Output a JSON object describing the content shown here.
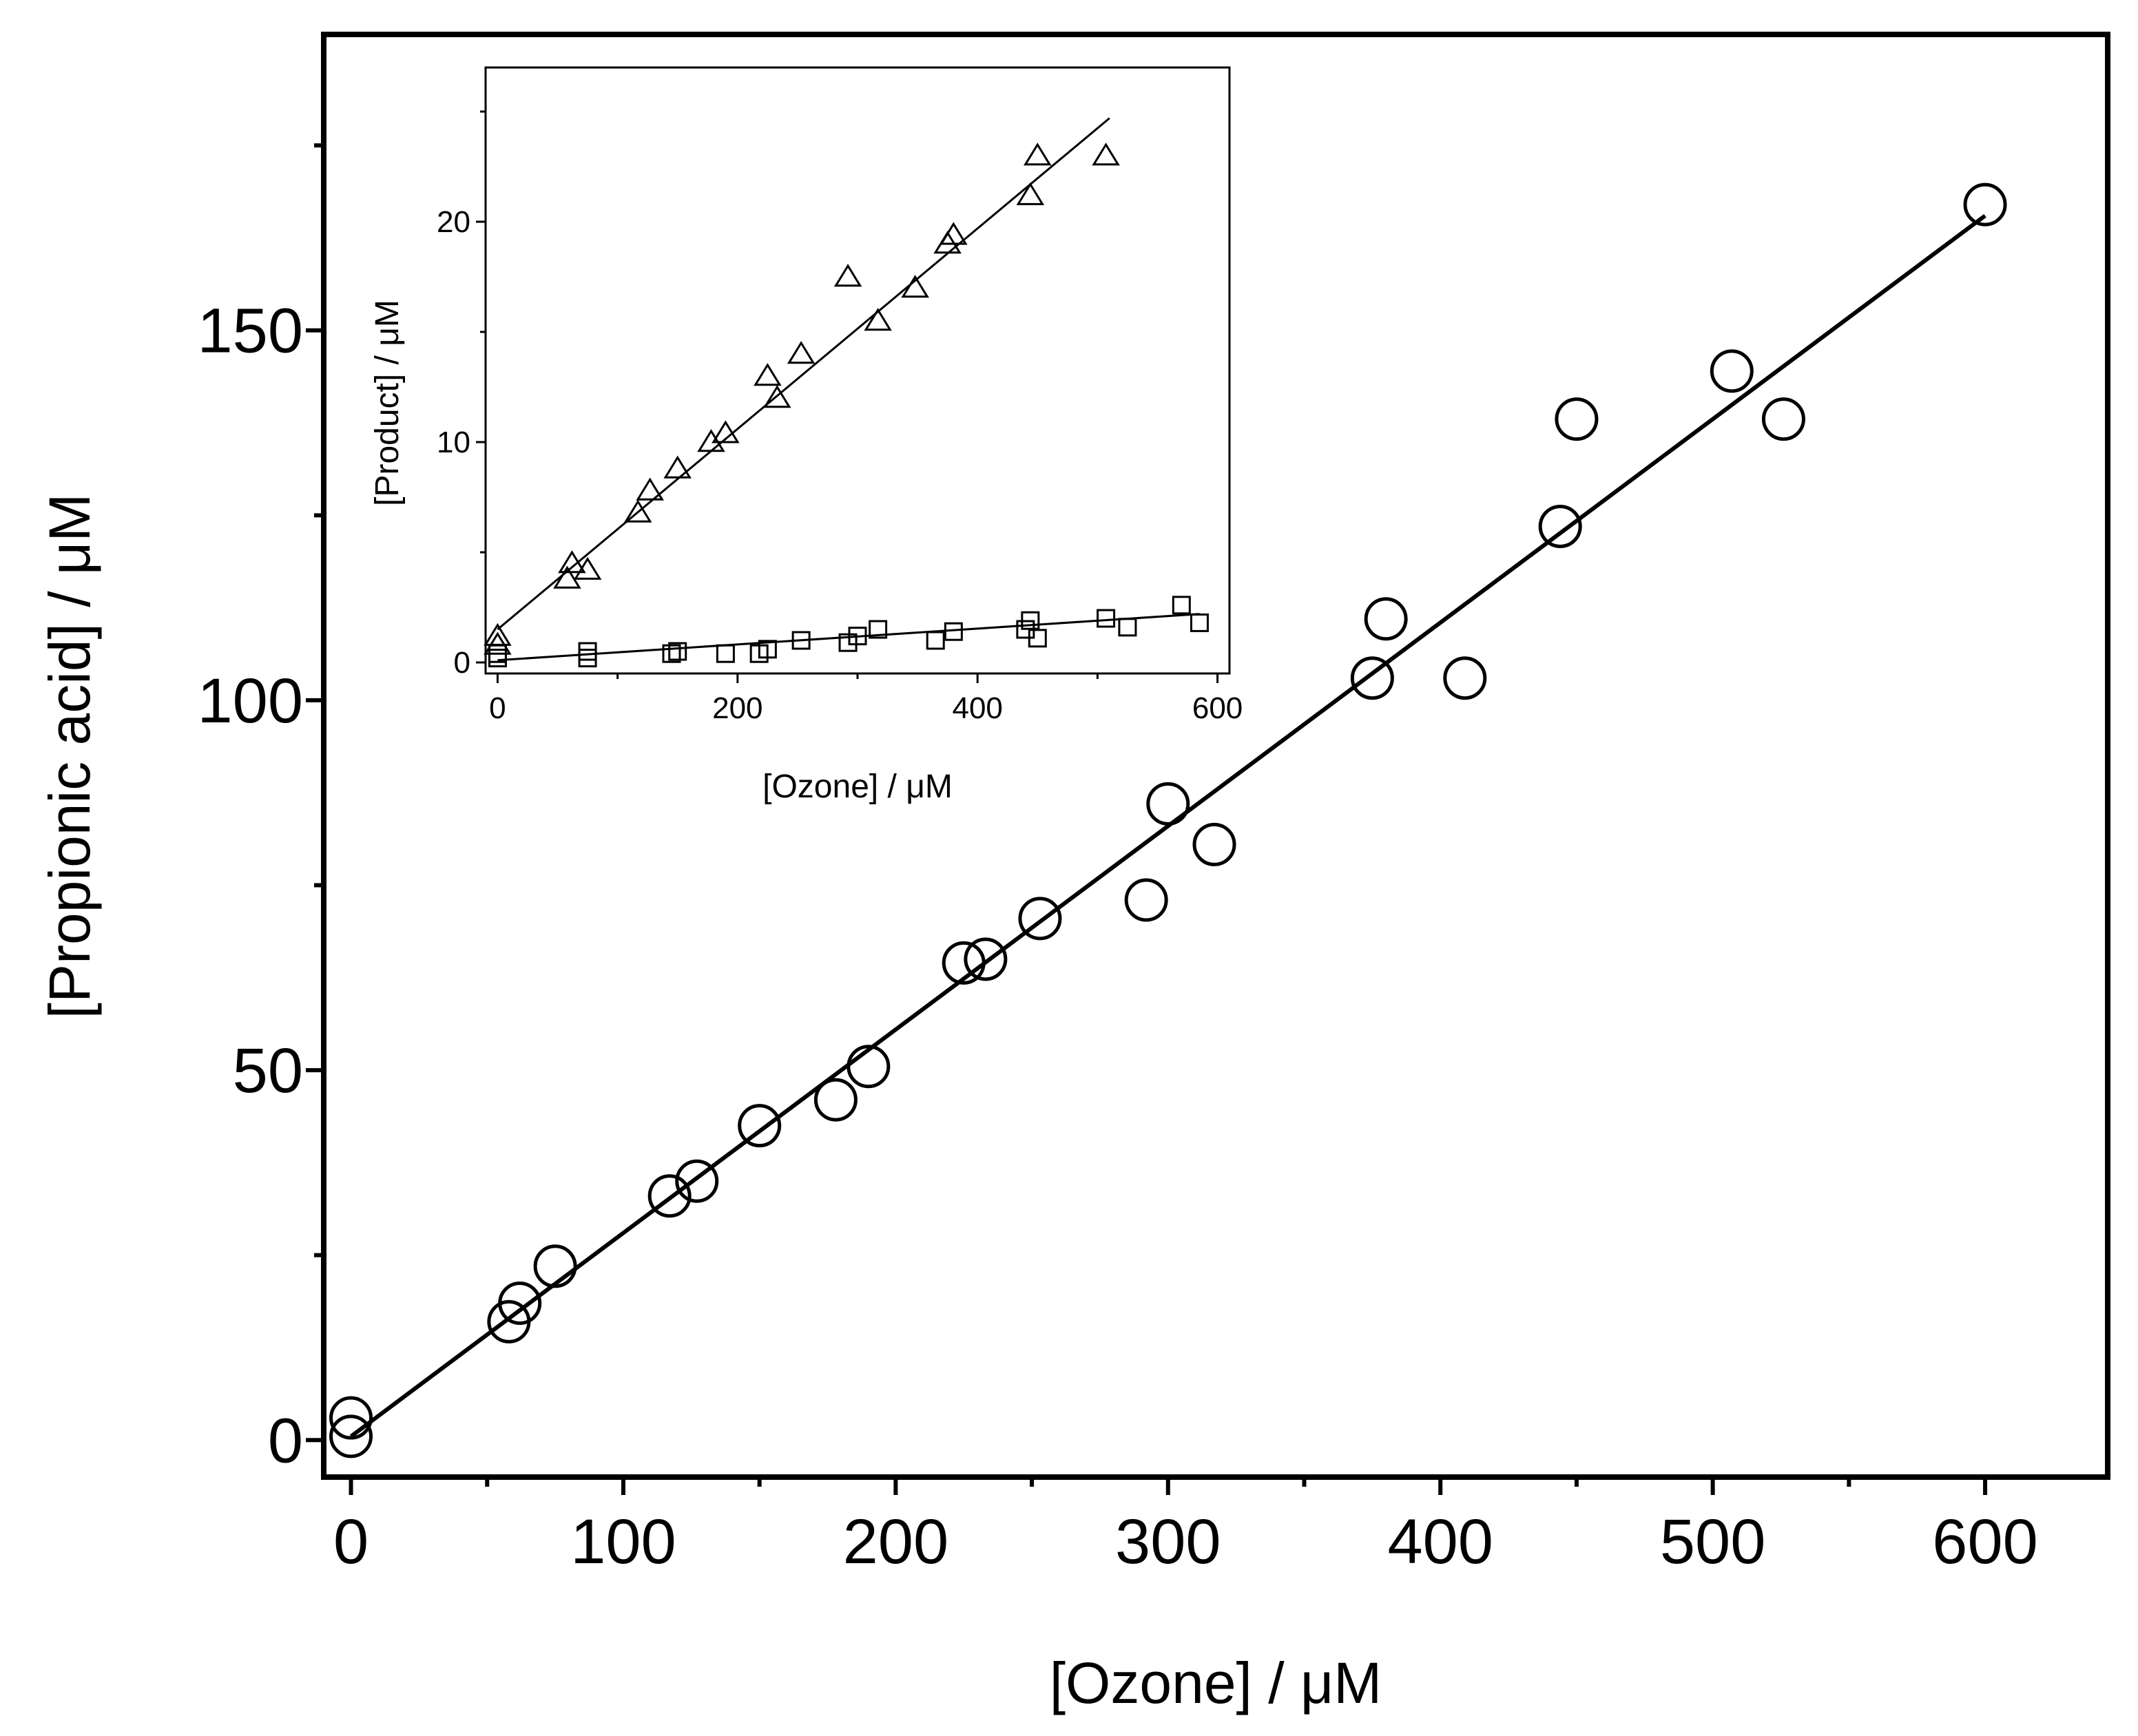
{
  "chart_data": [
    {
      "id": "main",
      "type": "scatter",
      "xlabel": "[Ozone] / μM",
      "ylabel": "[Propionic acid] / μM",
      "xlim": [
        -10,
        645
      ],
      "ylim": [
        -5,
        190
      ],
      "xticks": [
        0,
        100,
        200,
        300,
        400,
        500,
        600
      ],
      "yticks": [
        0,
        50,
        100,
        150
      ],
      "xtick_labels": [
        "0",
        "100",
        "200",
        "300",
        "400",
        "500",
        "600"
      ],
      "ytick_labels": [
        "0",
        "50",
        "100",
        "150"
      ],
      "x_minor_ticks": [
        50,
        150,
        250,
        350,
        450,
        550
      ],
      "y_minor_ticks": [
        25,
        75,
        125,
        175
      ],
      "series": [
        {
          "name": "Propionic acid",
          "marker": "circle",
          "points": [
            [
              0,
              0.5
            ],
            [
              0,
              3
            ],
            [
              58,
              16
            ],
            [
              62,
              18.5
            ],
            [
              75,
              23.5
            ],
            [
              117,
              33
            ],
            [
              127,
              35
            ],
            [
              150,
              42.5
            ],
            [
              178,
              46
            ],
            [
              190,
              50.5
            ],
            [
              225,
              64.5
            ],
            [
              233,
              65
            ],
            [
              253,
              70.5
            ],
            [
              292,
              73
            ],
            [
              300,
              86
            ],
            [
              317,
              80.5
            ],
            [
              375,
              103
            ],
            [
              380,
              111
            ],
            [
              409,
              103
            ],
            [
              444,
              123.5
            ],
            [
              450,
              138
            ],
            [
              507,
              144.5
            ],
            [
              526,
              138
            ],
            [
              600,
              167
            ]
          ]
        }
      ],
      "fit": {
        "x": [
          0,
          600
        ],
        "y": [
          0.5,
          165.5
        ]
      }
    },
    {
      "id": "inset",
      "type": "scatter",
      "xlabel": "[Ozone] / μM",
      "ylabel": "[Product]  / μM",
      "xlim": [
        -10,
        610
      ],
      "ylim": [
        -0.5,
        27
      ],
      "xticks": [
        0,
        200,
        400,
        600
      ],
      "yticks": [
        0,
        10,
        20
      ],
      "xtick_labels": [
        "0",
        "200",
        "400",
        "600"
      ],
      "ytick_labels": [
        "0",
        "10",
        "20"
      ],
      "x_minor_ticks": [
        100,
        300,
        500
      ],
      "y_minor_ticks": [
        5,
        15,
        25
      ],
      "series": [
        {
          "name": "triangle series",
          "marker": "triangle",
          "points": [
            [
              0,
              1.2
            ],
            [
              0,
              0.8
            ],
            [
              58,
              3.8
            ],
            [
              62,
              4.5
            ],
            [
              75,
              4.2
            ],
            [
              117,
              6.8
            ],
            [
              127,
              7.8
            ],
            [
              150,
              8.8
            ],
            [
              178,
              10
            ],
            [
              190,
              10.4
            ],
            [
              225,
              13
            ],
            [
              233,
              12
            ],
            [
              253,
              14
            ],
            [
              292,
              17.5
            ],
            [
              317,
              15.5
            ],
            [
              348,
              17
            ],
            [
              375,
              19
            ],
            [
              380,
              19.4
            ],
            [
              444,
              21.2
            ],
            [
              450,
              23
            ],
            [
              507,
              23
            ]
          ],
          "fit": {
            "x": [
              0,
              510
            ],
            "y": [
              1.5,
              24.7
            ]
          }
        },
        {
          "name": "square series",
          "marker": "square",
          "points": [
            [
              0,
              0.4
            ],
            [
              0,
              0.2
            ],
            [
              75,
              0.5
            ],
            [
              75,
              0.2
            ],
            [
              145,
              0.4
            ],
            [
              150,
              0.5
            ],
            [
              190,
              0.4
            ],
            [
              218,
              0.4
            ],
            [
              225,
              0.6
            ],
            [
              253,
              1.0
            ],
            [
              292,
              0.9
            ],
            [
              300,
              1.2
            ],
            [
              317,
              1.5
            ],
            [
              365,
              1.0
            ],
            [
              380,
              1.4
            ],
            [
              440,
              1.5
            ],
            [
              444,
              1.9
            ],
            [
              450,
              1.1
            ],
            [
              507,
              2.0
            ],
            [
              525,
              1.6
            ],
            [
              570,
              2.6
            ],
            [
              585,
              1.8
            ]
          ],
          "fit": {
            "x": [
              0,
              585
            ],
            "y": [
              0.1,
              2.2
            ]
          }
        }
      ]
    }
  ]
}
